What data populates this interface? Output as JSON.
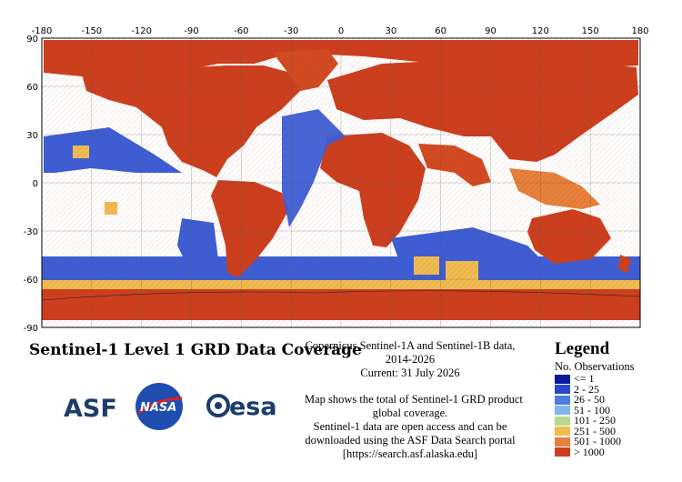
{
  "map": {
    "lon_ticks": [
      "-180",
      "-150",
      "-120",
      "-90",
      "-60",
      "-30",
      "0",
      "30",
      "60",
      "90",
      "120",
      "150",
      "180"
    ],
    "lat_ticks": [
      "90",
      "60",
      "30",
      "0",
      "-30",
      "-60",
      "-90"
    ],
    "colors": {
      "land_high": "#d24a22",
      "ocean_low": "#3b5ed6",
      "mid": "#e88a3a",
      "sea_ice_bands": "#f3b03e"
    }
  },
  "title": "Sentinel-1 Level 1 GRD Data Coverage",
  "logos": {
    "asf": "ASF",
    "nasa": "NASA",
    "esa": "esa"
  },
  "description": {
    "line1": "Copernicus Sentinel-1A and Sentinel-1B data,",
    "line2": "2014-2026",
    "line3": "Current: 31 July 2026",
    "line4": "Map shows the total of Sentinel-1 GRD product",
    "line5": "global coverage.",
    "line6": "Sentinel-1 data are open access and can be",
    "line7": "downloaded using the ASF Data Search portal",
    "line8": "[https://search.asf.alaska.edu]"
  },
  "legend": {
    "title": "Legend",
    "subtitle": "No. Observations",
    "items": [
      {
        "label": "<= 1",
        "color": "#0a1a9c"
      },
      {
        "label": "2 - 25",
        "color": "#2a48c8"
      },
      {
        "label": "26 - 50",
        "color": "#4a7ee0"
      },
      {
        "label": "51 - 100",
        "color": "#7fb8ec"
      },
      {
        "label": "101 - 250",
        "color": "#b8d98a"
      },
      {
        "label": "251 - 500",
        "color": "#f0bc52"
      },
      {
        "label": "501 - 1000",
        "color": "#e6803a"
      },
      {
        "label": "> 1000",
        "color": "#cc3f1e"
      }
    ]
  }
}
